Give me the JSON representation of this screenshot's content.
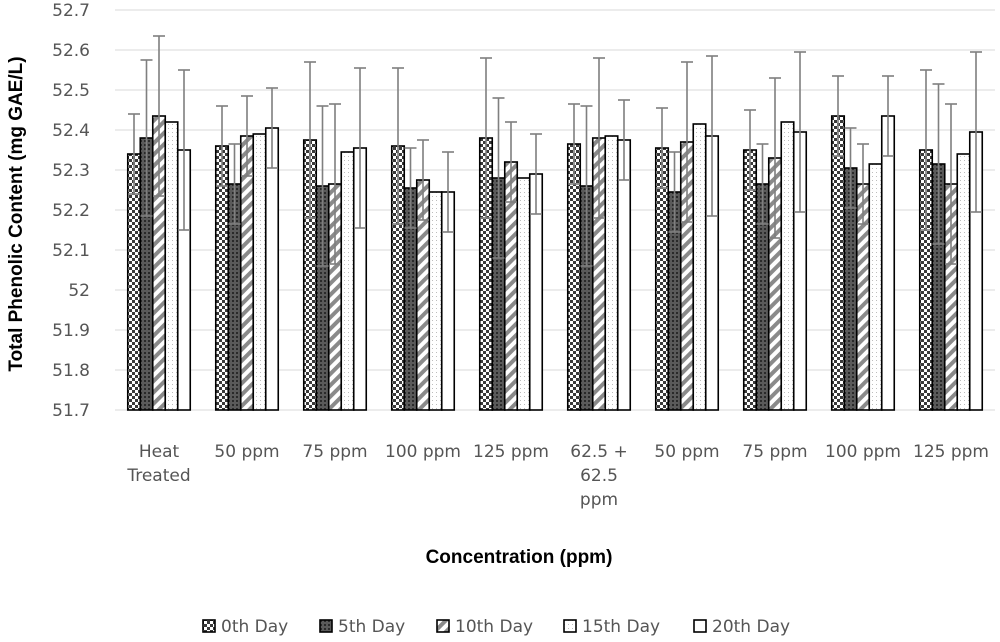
{
  "chart_data": {
    "type": "bar",
    "title": "",
    "xlabel": "Concentration (ppm)",
    "ylabel": "Total Phenolic Content (mg GAE/L)",
    "ylim": [
      51.7,
      52.7
    ],
    "yticks": [
      "51.7",
      "51.8",
      "51.9",
      "52",
      "52.1",
      "52.2",
      "52.3",
      "52.4",
      "52.5",
      "52.6",
      "52.7"
    ],
    "grid": true,
    "legend_position": "bottom",
    "categories": [
      [
        "Heat",
        "Treated"
      ],
      [
        "50 ppm"
      ],
      [
        "75 ppm"
      ],
      [
        "100 ppm"
      ],
      [
        "125 ppm"
      ],
      [
        "62.5 +",
        "62.5",
        "ppm"
      ],
      [
        "50 ppm"
      ],
      [
        "75 ppm"
      ],
      [
        "100 ppm"
      ],
      [
        "125 ppm"
      ]
    ],
    "series": [
      {
        "name": "0th Day",
        "values": [
          52.34,
          52.36,
          52.375,
          52.36,
          52.38,
          52.365,
          52.355,
          52.35,
          52.435,
          52.35
        ],
        "errors": [
          0.1,
          0.1,
          0.195,
          0.195,
          0.2,
          0.1,
          0.1,
          0.1,
          0.1,
          0.2
        ]
      },
      {
        "name": "5th Day",
        "values": [
          52.38,
          52.265,
          52.26,
          52.255,
          52.28,
          52.26,
          52.245,
          52.265,
          52.305,
          52.315
        ],
        "errors": [
          0.195,
          0.1,
          0.2,
          0.1,
          0.2,
          0.2,
          0.1,
          0.1,
          0.1,
          0.2
        ]
      },
      {
        "name": "10th Day",
        "values": [
          52.435,
          52.385,
          52.265,
          52.275,
          52.32,
          52.38,
          52.37,
          52.33,
          52.265,
          52.265
        ],
        "errors": [
          0.2,
          0.1,
          0.2,
          0.1,
          0.1,
          0.2,
          0.2,
          0.2,
          0.1,
          0.2
        ]
      },
      {
        "name": "15th Day",
        "values": [
          52.42,
          52.39,
          52.345,
          52.245,
          52.28,
          52.385,
          52.415,
          52.42,
          52.315,
          52.34
        ],
        "errors": [
          0,
          0,
          0,
          0,
          0,
          0,
          0,
          0,
          0,
          0
        ]
      },
      {
        "name": "20th Day",
        "values": [
          52.35,
          52.405,
          52.355,
          52.245,
          52.29,
          52.375,
          52.385,
          52.395,
          52.435,
          52.395
        ],
        "errors": [
          0.2,
          0.1,
          0.2,
          0.1,
          0.1,
          0.1,
          0.2,
          0.2,
          0.1,
          0.2
        ]
      }
    ]
  },
  "colors": {
    "grid": "#d9d9d9",
    "bar_stroke": "#000000",
    "error_bar": "#7f7f7f",
    "axis_text": "#555555"
  }
}
